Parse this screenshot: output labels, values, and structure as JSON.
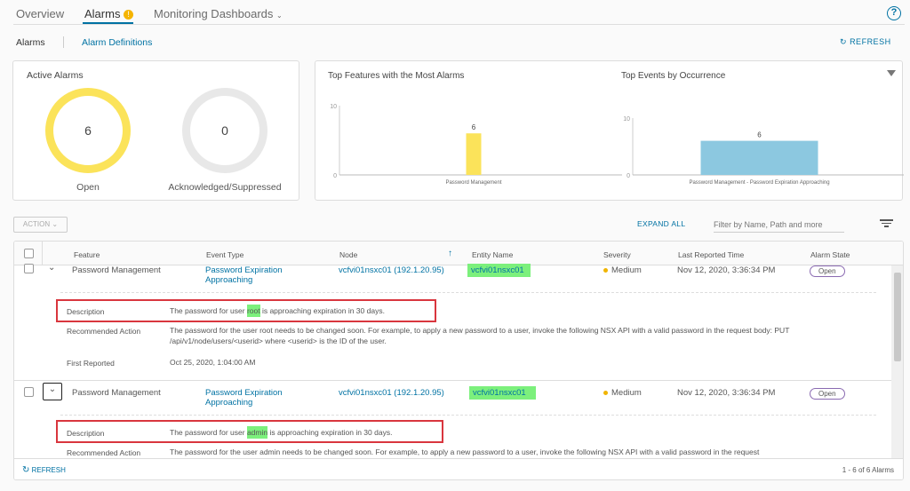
{
  "tabs": [
    {
      "label": "Overview"
    },
    {
      "label": "Alarms"
    },
    {
      "label": "Monitoring Dashboards"
    }
  ],
  "subnav": {
    "alarms": "Alarms",
    "definitions": "Alarm Definitions",
    "refresh": "REFRESH"
  },
  "active_alarms": {
    "title": "Active Alarms",
    "open_count": "6",
    "open_label": "Open",
    "ack_count": "0",
    "ack_label": "Acknowledged/Suppressed"
  },
  "colors": {
    "open": "#fbe35a",
    "ack": "#e8e8e8",
    "bar1": "#fbe35a",
    "bar2": "#8cc8e0",
    "link": "#0072a3",
    "highlight": "#7cf07c",
    "box": "#d9363e"
  },
  "chart_data": [
    {
      "type": "bar",
      "title": "Top Features with the Most Alarms",
      "categories": [
        "Password Management"
      ],
      "values": [
        6
      ],
      "ylim": [
        0,
        10
      ],
      "yticks": [
        "0",
        "10"
      ]
    },
    {
      "type": "bar",
      "title": "Top Events by Occurrence",
      "categories": [
        "Password Management - Password Expiration Approaching"
      ],
      "values": [
        6
      ],
      "ylim": [
        0,
        10
      ],
      "yticks": [
        "0",
        "10"
      ]
    }
  ],
  "toolbar": {
    "action": "ACTION",
    "expand_all": "EXPAND ALL",
    "filter_placeholder": "Filter by Name, Path and more"
  },
  "table": {
    "headers": [
      "Feature",
      "Event Type",
      "Node",
      "Entity Name",
      "Severity",
      "Last Reported Time",
      "Alarm State"
    ],
    "rows": [
      {
        "feature": "Password Management",
        "event": "Password Expiration Approaching",
        "node": "vcfvi01nsxc01 (192.1.20.95)",
        "entity": "vcfvi01nsxc01",
        "severity": "Medium",
        "time": "Nov 12, 2020, 3:36:34 PM",
        "state": "Open",
        "desc_label": "Description",
        "desc_pre": "The password for user ",
        "desc_user": "root",
        "desc_post": " is approaching expiration in 30 days.",
        "rec_label": "Recommended Action",
        "rec": "The password for the user root needs to be changed soon. For example, to apply a new password to a user, invoke the following NSX API with a valid password in the request body: PUT /api/v1/node/users/<userid> where <userid> is the ID of the user.",
        "first_label": "First Reported",
        "first": "Oct 25, 2020, 1:04:00 AM"
      },
      {
        "feature": "Password Management",
        "event": "Password Expiration Approaching",
        "node": "vcfvi01nsxc01 (192.1.20.95)",
        "entity": "vcfvi01nsxc01",
        "severity": "Medium",
        "time": "Nov 12, 2020, 3:36:34 PM",
        "state": "Open",
        "desc_label": "Description",
        "desc_pre": "The password for user ",
        "desc_user": "admin",
        "desc_post": " is approaching expiration in 30 days.",
        "rec_label": "Recommended Action",
        "rec": "The password for the user admin needs to be changed soon. For example, to apply a new password to a user, invoke the following NSX API with a valid password in the request"
      }
    ]
  },
  "footer": {
    "refresh": "REFRESH",
    "count": "1 - 6 of 6 Alarms"
  }
}
